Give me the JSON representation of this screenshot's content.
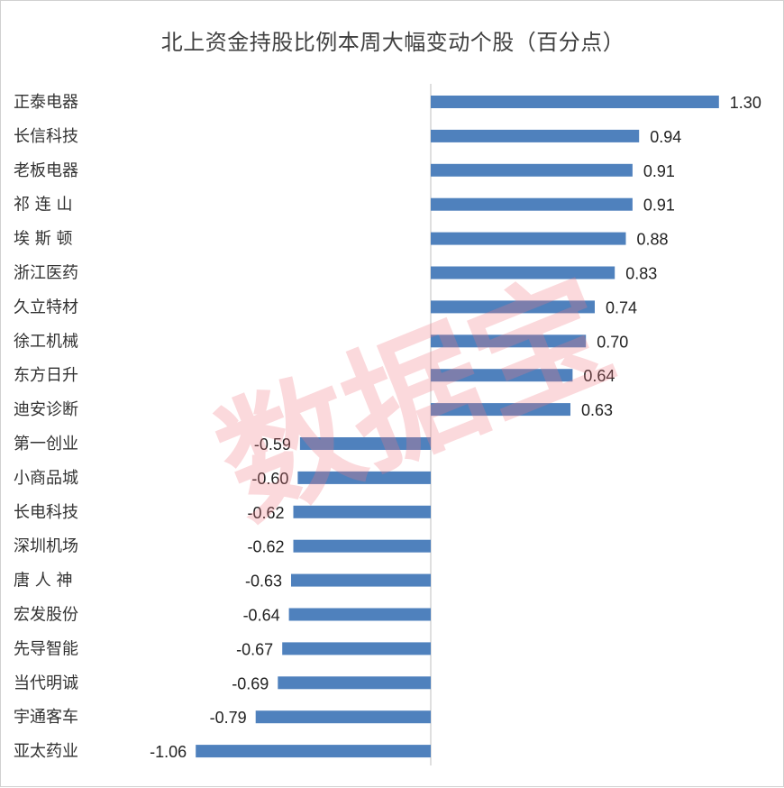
{
  "chart_data": {
    "type": "bar",
    "orientation": "horizontal",
    "title": "北上资金持股比例本周大幅变动个股（百分点）",
    "categories": [
      "正泰电器",
      "长信科技",
      "老板电器",
      "祁 连 山",
      "埃 斯 顿",
      "浙江医药",
      "久立特材",
      "徐工机械",
      "东方日升",
      "迪安诊断",
      "第一创业",
      "小商品城",
      "长电科技",
      "深圳机场",
      "唐 人 神",
      "宏发股份",
      "先导智能",
      "当代明诚",
      "宇通客车",
      "亚太药业"
    ],
    "values": [
      1.3,
      0.94,
      0.91,
      0.91,
      0.88,
      0.83,
      0.74,
      0.7,
      0.64,
      0.63,
      -0.59,
      -0.6,
      -0.62,
      -0.62,
      -0.63,
      -0.64,
      -0.67,
      -0.69,
      -0.79,
      -1.06
    ],
    "value_labels": [
      "1.30",
      "0.94",
      "0.91",
      "0.91",
      "0.88",
      "0.83",
      "0.74",
      "0.70",
      "0.64",
      "0.63",
      "-0.59",
      "-0.60",
      "-0.62",
      "-0.62",
      "-0.63",
      "-0.64",
      "-0.67",
      "-0.69",
      "-0.79",
      "-1.06"
    ],
    "xlim": [
      -1.06,
      1.3
    ],
    "grid": false,
    "legend": "none",
    "bar_color": "#4f81bd",
    "axis_color": "#bfbfbf"
  },
  "watermark": "数据宝",
  "colors": {
    "watermark": "#f08090"
  }
}
